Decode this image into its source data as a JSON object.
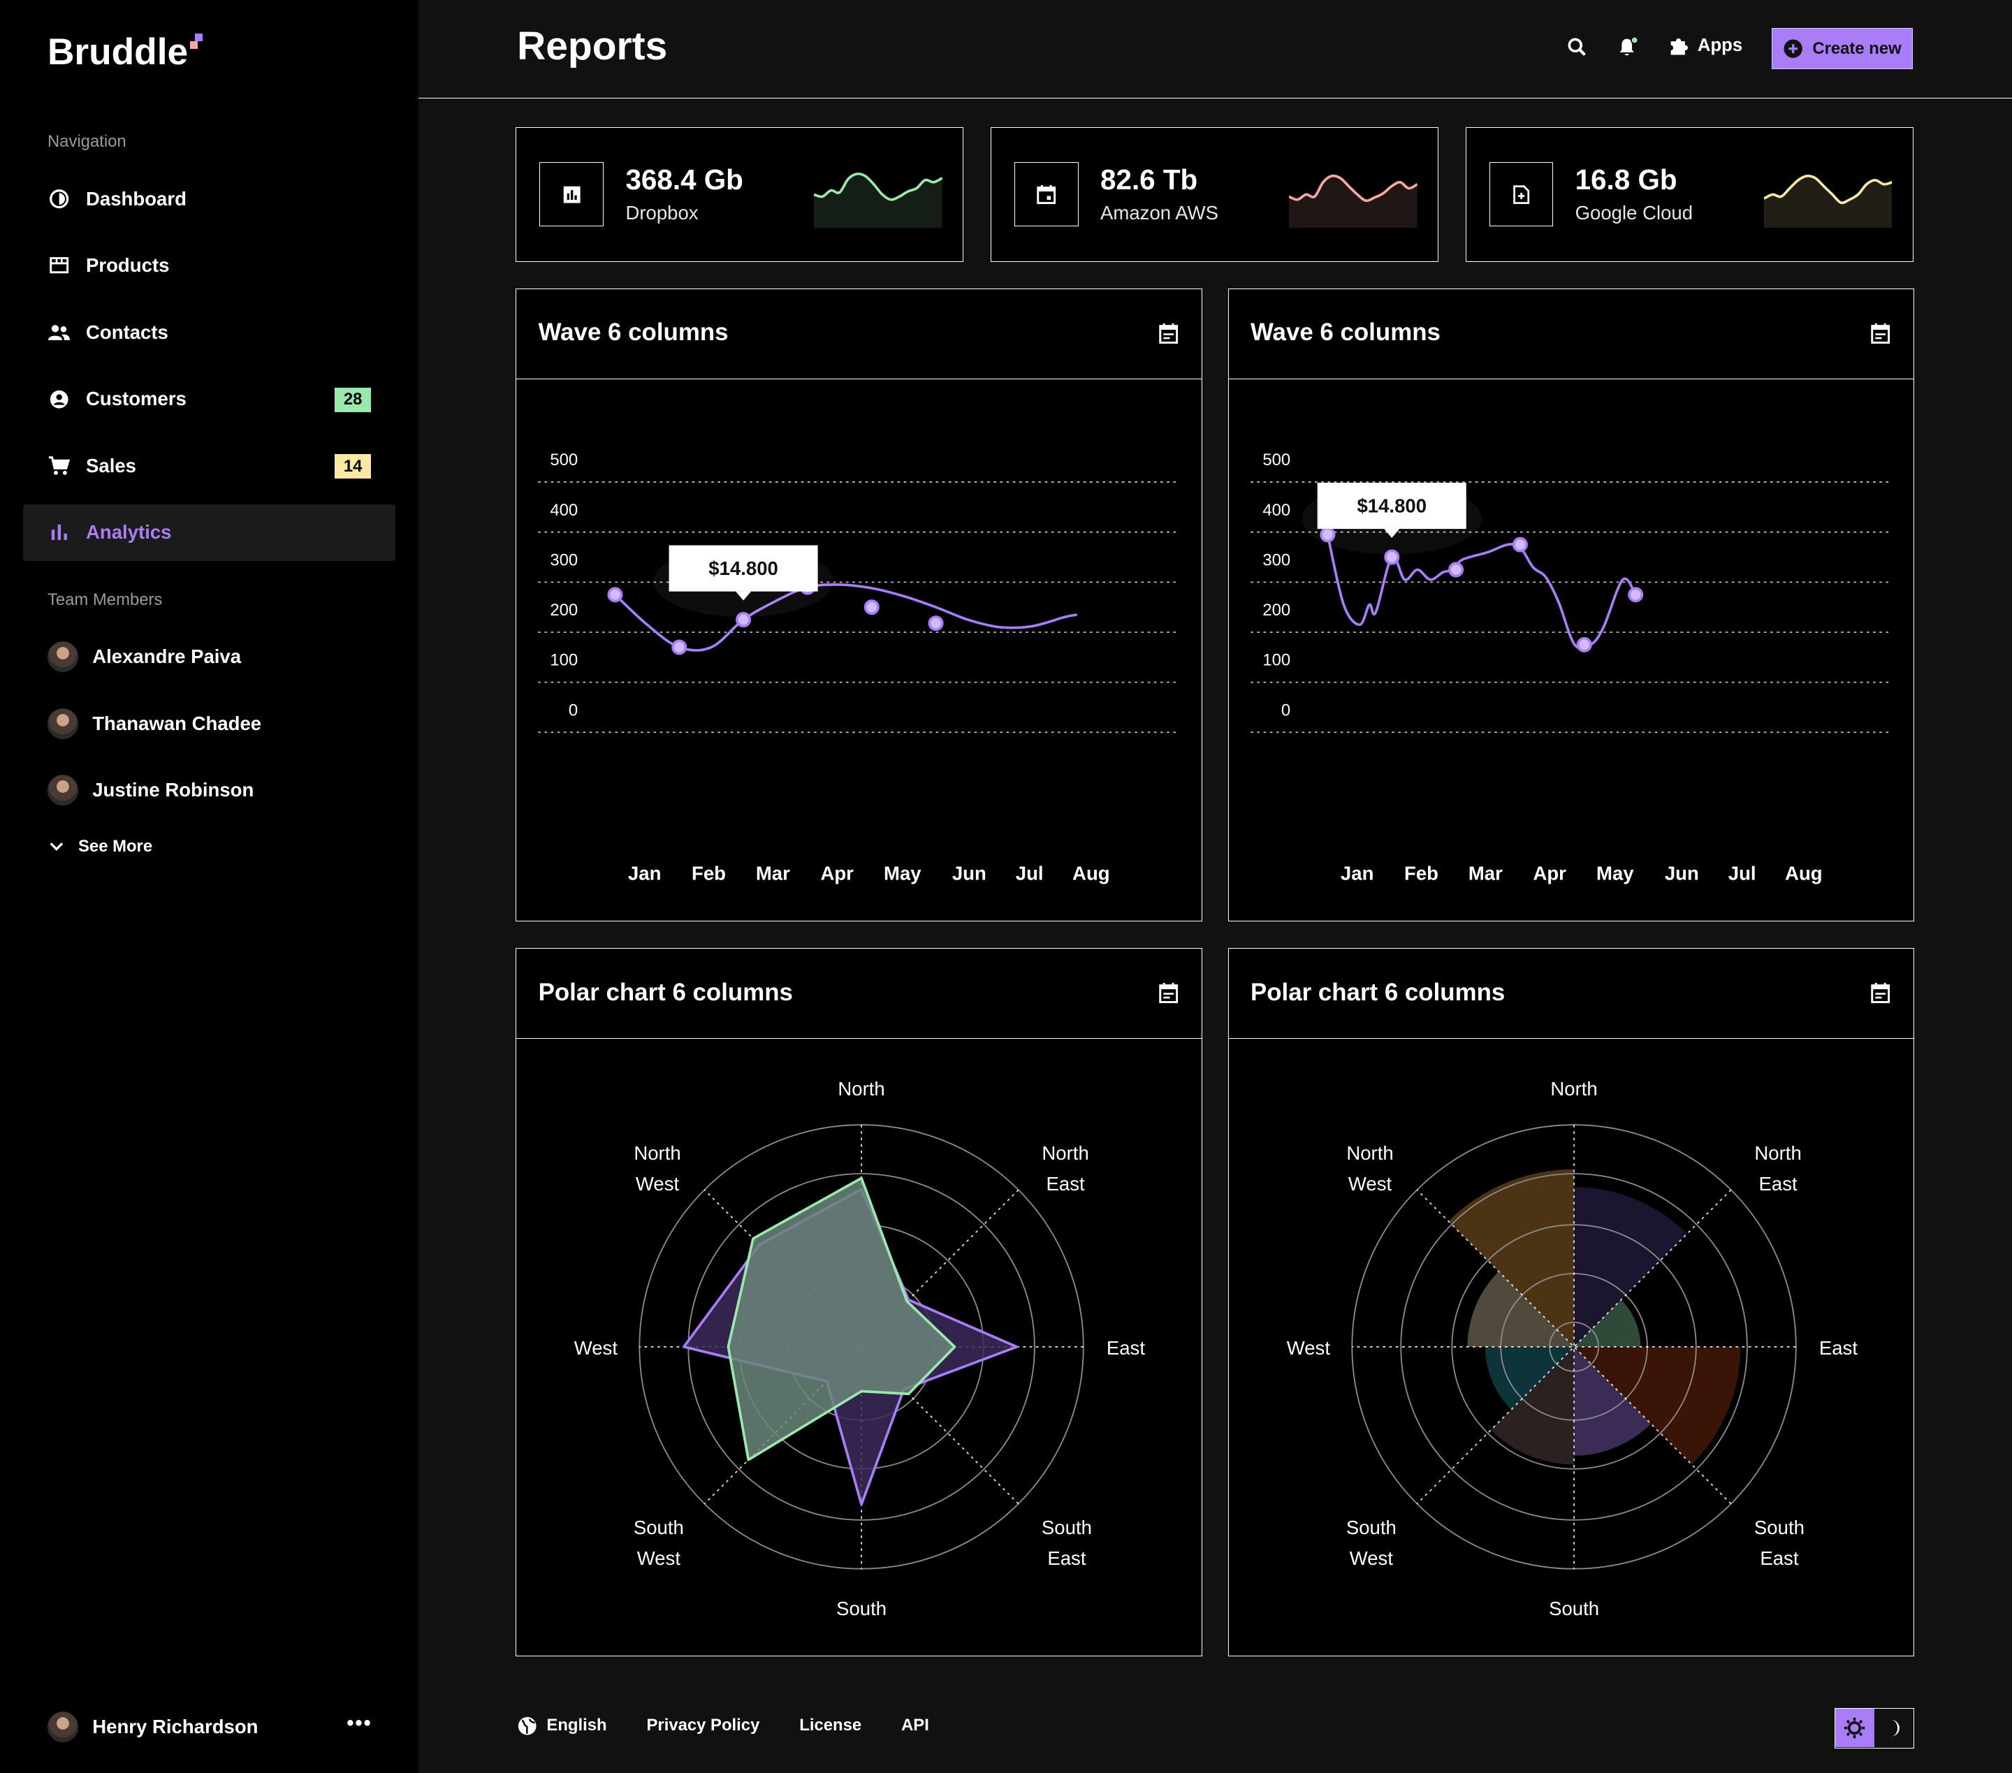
{
  "brand": {
    "name": "Bruddle"
  },
  "sidebar": {
    "nav_label": "Navigation",
    "items": [
      {
        "label": "Dashboard",
        "icon": "dashboard-icon"
      },
      {
        "label": "Products",
        "icon": "store-icon"
      },
      {
        "label": "Contacts",
        "icon": "contacts-icon"
      },
      {
        "label": "Customers",
        "icon": "customer-icon",
        "badge": "28",
        "badge_color": "#98e9ab"
      },
      {
        "label": "Sales",
        "icon": "cart-icon",
        "badge": "14",
        "badge_color": "#fae8a4"
      },
      {
        "label": "Analytics",
        "icon": "analytics-icon",
        "active": true
      }
    ],
    "team_label": "Team Members",
    "members": [
      {
        "name": "Alexandre Paiva"
      },
      {
        "name": "Thanawan Chadee"
      },
      {
        "name": "Justine Robinson"
      }
    ],
    "see_more": "See More",
    "profile": {
      "name": "Henry Richardson",
      "more": "•••"
    }
  },
  "header": {
    "title": "Reports",
    "apps_label": "Apps",
    "create_label": "Create new"
  },
  "stats": [
    {
      "value": "368.4 Gb",
      "label": "Dropbox",
      "color": "#98e9ab",
      "trend": [
        30,
        28,
        34,
        32,
        45,
        50,
        48,
        40,
        30,
        25,
        28,
        33,
        36,
        44,
        42,
        46
      ]
    },
    {
      "value": "82.6 Tb",
      "label": "Amazon AWS",
      "color": "#f8a8a0",
      "trend": [
        28,
        25,
        30,
        28,
        42,
        48,
        46,
        38,
        30,
        24,
        27,
        31,
        38,
        42,
        36,
        40
      ]
    },
    {
      "value": "16.8 Gb",
      "label": "Google Cloud",
      "color": "#fae8a4",
      "trend": [
        26,
        30,
        28,
        36,
        44,
        48,
        46,
        38,
        30,
        22,
        25,
        30,
        40,
        44,
        40,
        42
      ]
    }
  ],
  "wave_charts": [
    {
      "title": "Wave 6 columns",
      "tooltip": "$14.800",
      "tooltip_index": 2,
      "chart_data": {
        "type": "line",
        "categories": [
          "Jan",
          "Feb",
          "Mar",
          "Apr",
          "May",
          "Jun",
          "Jul",
          "Aug"
        ],
        "ylim": [
          0,
          500
        ],
        "yticks": [
          0,
          100,
          200,
          300,
          400,
          500
        ],
        "line": [
          [
            0,
            275
          ],
          [
            0.5,
            215
          ],
          [
            1,
            170
          ],
          [
            1.5,
            170
          ],
          [
            2,
            225
          ],
          [
            2.5,
            262
          ],
          [
            3,
            290
          ],
          [
            3.5,
            295
          ],
          [
            4,
            288
          ],
          [
            4.5,
            272
          ],
          [
            5,
            250
          ],
          [
            5.5,
            225
          ],
          [
            6,
            210
          ],
          [
            6.5,
            212
          ],
          [
            7,
            230
          ],
          [
            7.2,
            235
          ]
        ],
        "points": [
          [
            0,
            275
          ],
          [
            1,
            170
          ],
          [
            2,
            225
          ],
          [
            3,
            290
          ],
          [
            4,
            250
          ],
          [
            5,
            218
          ]
        ],
        "color": "#a97cf8",
        "grid": true
      }
    },
    {
      "title": "Wave 6 columns",
      "tooltip": "$14.800",
      "tooltip_index": 1,
      "chart_data": {
        "type": "line",
        "categories": [
          "Jan",
          "Feb",
          "Mar",
          "Apr",
          "May",
          "Jun",
          "Jul",
          "Aug"
        ],
        "ylim": [
          0,
          500
        ],
        "yticks": [
          0,
          100,
          200,
          300,
          400,
          500
        ],
        "line": [
          [
            0,
            395
          ],
          [
            0.25,
            255
          ],
          [
            0.5,
            215
          ],
          [
            0.65,
            255
          ],
          [
            0.75,
            240
          ],
          [
            1,
            350
          ],
          [
            1.2,
            305
          ],
          [
            1.4,
            325
          ],
          [
            1.6,
            305
          ],
          [
            1.8,
            320
          ],
          [
            1.95,
            325
          ],
          [
            2.1,
            345
          ],
          [
            2.5,
            360
          ],
          [
            2.8,
            375
          ],
          [
            3.0,
            370
          ],
          [
            3.2,
            330
          ],
          [
            3.4,
            310
          ],
          [
            3.6,
            260
          ],
          [
            3.85,
            175
          ],
          [
            4.1,
            175
          ],
          [
            4.3,
            210
          ],
          [
            4.6,
            305
          ],
          [
            4.8,
            275
          ]
        ],
        "points": [
          [
            0,
            395
          ],
          [
            1,
            350
          ],
          [
            2,
            325
          ],
          [
            3,
            375
          ],
          [
            4,
            175
          ],
          [
            4.8,
            275
          ]
        ],
        "color": "#a97cf8",
        "grid": true
      }
    }
  ],
  "polar_charts": [
    {
      "title": "Polar chart 6 columns",
      "chart_data": {
        "type": "radar",
        "axes": [
          "North",
          "North East",
          "East",
          "South East",
          "South",
          "South West",
          "West",
          "North West"
        ],
        "rmax": 10,
        "series": [
          {
            "values": [
              7.1,
              3.0,
              7.0,
              2.7,
              7.1,
              2.2,
              8.0,
              6.5
            ],
            "color": "#a97cf8",
            "fill": "#3c2a5c"
          },
          {
            "values": [
              7.6,
              2.9,
              4.2,
              3.0,
              2.0,
              7.2,
              6.0,
              6.9
            ],
            "color": "#98e9ab",
            "fill": "#6b867a"
          }
        ]
      }
    },
    {
      "title": "Polar chart 6 columns",
      "chart_data": {
        "type": "polar-area",
        "axes": [
          "North",
          "North East",
          "East",
          "South East",
          "South",
          "South West",
          "West",
          "North West"
        ],
        "rmax": 10,
        "sectors": [
          {
            "value": 7.2,
            "fill": "#1b1530"
          },
          {
            "value": 3.0,
            "fill": "#2f4a38"
          },
          {
            "value": 7.5,
            "fill": "#3a1407"
          },
          {
            "value": 4.9,
            "fill": "#3a2c55"
          },
          {
            "value": 5.3,
            "fill": "#2c2121"
          },
          {
            "value": 4.0,
            "fill": "#0d3438"
          },
          {
            "value": 4.8,
            "fill": "#4f4a3c"
          },
          {
            "value": 8.0,
            "fill": "#4c3313"
          }
        ]
      }
    }
  ],
  "footer": {
    "language": "English",
    "privacy": "Privacy Policy",
    "license": "License",
    "api": "API"
  }
}
